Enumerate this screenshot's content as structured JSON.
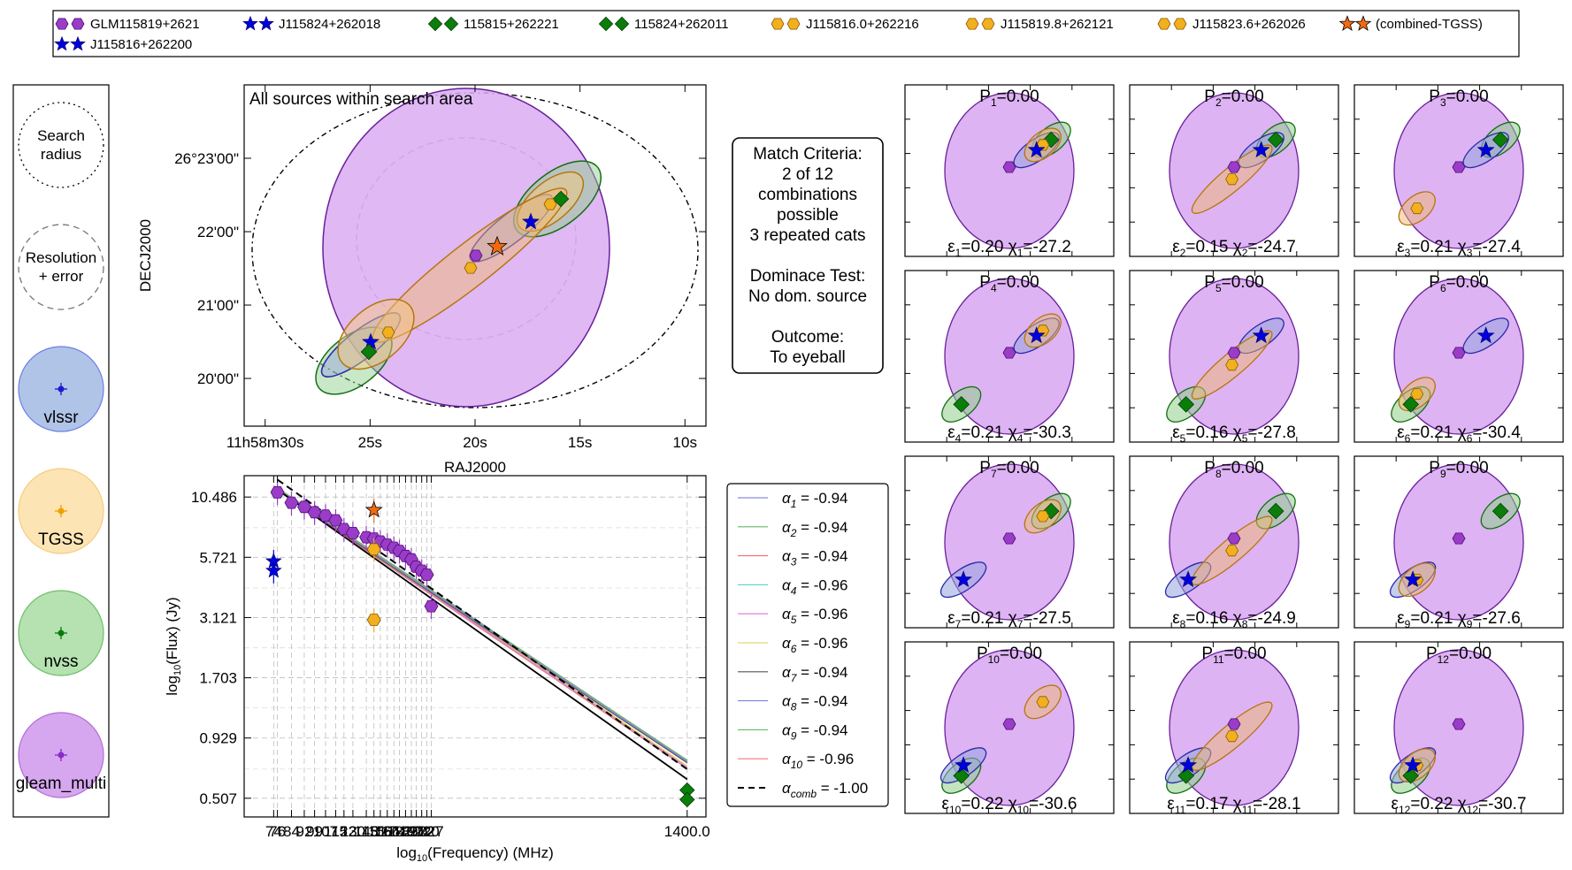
{
  "legend_top": [
    {
      "label": "GLM115819+2621",
      "marker": "hexagon-purple"
    },
    {
      "label": "J115824+262018",
      "marker": "star-blue"
    },
    {
      "label": "115815+262221",
      "marker": "diamond-green"
    },
    {
      "label": "115824+262011",
      "marker": "diamond-green"
    },
    {
      "label": "J115816.0+262216",
      "marker": "hexagon-orange"
    },
    {
      "label": "J115819.8+262121",
      "marker": "hexagon-orange"
    },
    {
      "label": "J115823.6+262026",
      "marker": "hexagon-orange"
    },
    {
      "label": "(combined-TGSS)",
      "marker": "star-orange"
    },
    {
      "label": "J115816+262200",
      "marker": "star-blue"
    }
  ],
  "key_panel": {
    "search": {
      "line1": "Search",
      "line2": "radius"
    },
    "resolution": {
      "line1": "Resolution",
      "line2": "+ error"
    },
    "catalogues": [
      {
        "name": "vlssr",
        "fill": "#b0c4e8",
        "edge": "#6c7ee6",
        "marker": "#1a1ad0"
      },
      {
        "name": "TGSS",
        "fill": "#fde4b4",
        "edge": "#f5cc80",
        "marker": "#f0a000"
      },
      {
        "name": "nvss",
        "fill": "#b5e2b0",
        "edge": "#6fbf69",
        "marker": "#0a7a0a"
      },
      {
        "name": "gleam_multi",
        "fill": "#d6a6ef",
        "edge": "#b06fd8",
        "marker": "#8a2ac8"
      }
    ]
  },
  "match_box": {
    "lines": [
      "Match Criteria:",
      "2 of 12",
      "combinations",
      "possible",
      "3 repeated cats",
      "",
      "Dominace Test:",
      "No dom. source",
      "",
      "Outcome:",
      "To eyeball"
    ]
  },
  "colors": {
    "gleam": "#9a3cc8",
    "vlssr": "#0000dd",
    "nvss": "#0a7d0a",
    "tgss": "#f2b01e",
    "combined": "#f26a10"
  },
  "chart_data": [
    {
      "type": "scatter",
      "title": "All sources within search area",
      "xlabel": "RAJ2000",
      "ylabel": "DECJ2000",
      "x_ticks": [
        {
          "label": "11h58m30s",
          "ra_sec": 30
        },
        {
          "label": "25s",
          "ra_sec": 25
        },
        {
          "label": "20s",
          "ra_sec": 20
        },
        {
          "label": "15s",
          "ra_sec": 15
        },
        {
          "label": "10s",
          "ra_sec": 10
        }
      ],
      "y_ticks": [
        {
          "label": "26°23'00\"",
          "dec_arcmin": 23
        },
        {
          "label": "22'00\"",
          "dec_arcmin": 22
        },
        {
          "label": "21'00\"",
          "dec_arcmin": 21
        },
        {
          "label": "20'00\"",
          "dec_arcmin": 20
        }
      ],
      "xlim": [
        31,
        9
      ],
      "ylim": [
        19.35,
        24.0
      ]
    },
    {
      "type": "scatter",
      "xlabel": "log10(Frequency) (MHz)",
      "ylabel": "log10(Flux) (Jy)",
      "y_tick_labels": [
        "10.486",
        "5.721",
        "3.121",
        "1.703",
        "0.929",
        "0.507"
      ],
      "x_tick_labels": [
        "74",
        "76",
        "84",
        "92",
        "99",
        "107",
        "115",
        "122",
        "130",
        "143",
        "151",
        "158",
        "166",
        "174",
        "181",
        "189",
        "197",
        "204",
        "212",
        "220",
        "227",
        "1400.0"
      ],
      "xlim": [
        60,
        1600
      ],
      "ylim": [
        0.42,
        13.0
      ],
      "series": [
        {
          "name": "gleam_multi",
          "points": [
            [
              76,
              11.0
            ],
            [
              84,
              9.9
            ],
            [
              92,
              9.5
            ],
            [
              99,
              9.0
            ],
            [
              107,
              8.7
            ],
            [
              115,
              8.3
            ],
            [
              122,
              7.6
            ],
            [
              130,
              7.3
            ],
            [
              143,
              7.0
            ],
            [
              151,
              6.9
            ],
            [
              158,
              6.7
            ],
            [
              166,
              6.5
            ],
            [
              174,
              6.3
            ],
            [
              181,
              6.1
            ],
            [
              189,
              5.8
            ],
            [
              197,
              5.6
            ],
            [
              204,
              5.2
            ],
            [
              212,
              5.0
            ],
            [
              220,
              4.8
            ],
            [
              227,
              3.5
            ]
          ]
        },
        {
          "name": "vlssr",
          "points": [
            [
              74,
              5.5
            ],
            [
              74,
              5.0
            ]
          ]
        },
        {
          "name": "tgss",
          "points": [
            [
              151,
              6.2
            ],
            [
              151,
              3.05
            ]
          ]
        },
        {
          "name": "combined-TGSS",
          "points": [
            [
              151,
              9.2
            ]
          ]
        },
        {
          "name": "nvss",
          "points": [
            [
              1400,
              0.55
            ],
            [
              1400,
              0.5
            ]
          ]
        }
      ],
      "fit_lines": [
        {
          "label": "α1 = -0.94",
          "sub": "1",
          "alpha": "-0.94",
          "color": "#6c6cd8"
        },
        {
          "label": "α2 = -0.94",
          "sub": "2",
          "alpha": "-0.94",
          "color": "#66b566"
        },
        {
          "label": "α3 = -0.94",
          "sub": "3",
          "alpha": "-0.94",
          "color": "#f07070"
        },
        {
          "label": "α4 = -0.96",
          "sub": "4",
          "alpha": "-0.96",
          "color": "#5ad2d2"
        },
        {
          "label": "α5 = -0.96",
          "sub": "5",
          "alpha": "-0.96",
          "color": "#e070e0"
        },
        {
          "label": "α6 = -0.96",
          "sub": "6",
          "alpha": "-0.96",
          "color": "#d8d050"
        },
        {
          "label": "α7 = -0.94",
          "sub": "7",
          "alpha": "-0.94",
          "color": "#555555"
        },
        {
          "label": "α8 = -0.94",
          "sub": "8",
          "alpha": "-0.94",
          "color": "#8080e0"
        },
        {
          "label": "α9 = -0.94",
          "sub": "9",
          "alpha": "-0.94",
          "color": "#66bb66"
        },
        {
          "label": "α10 = -0.96",
          "sub": "10",
          "alpha": "-0.96",
          "color": "#f07878"
        },
        {
          "label": "αcomb = -1.00",
          "sub": "comb",
          "alpha": "-1.00",
          "color": "#000000",
          "dashed": true
        }
      ]
    },
    {
      "type": "scatter",
      "panels": [
        {
          "p": "P1=0.00",
          "eps": "0.20",
          "chi": "-27.2",
          "idx": "1"
        },
        {
          "p": "P2=0.00",
          "eps": "0.15",
          "chi": "-24.7",
          "idx": "2"
        },
        {
          "p": "P3=0.00",
          "eps": "0.21",
          "chi": "-27.4",
          "idx": "3"
        },
        {
          "p": "P4=0.00",
          "eps": "0.21",
          "chi": "-30.3",
          "idx": "4"
        },
        {
          "p": "P5=0.00",
          "eps": "0.16",
          "chi": "-27.8",
          "idx": "5"
        },
        {
          "p": "P6=0.00",
          "eps": "0.21",
          "chi": "-30.4",
          "idx": "6"
        },
        {
          "p": "P7=0.00",
          "eps": "0.21",
          "chi": "-27.5",
          "idx": "7"
        },
        {
          "p": "P8=0.00",
          "eps": "0.16",
          "chi": "-24.9",
          "idx": "8"
        },
        {
          "p": "P9=0.00",
          "eps": "0.21",
          "chi": "-27.6",
          "idx": "9"
        },
        {
          "p": "P10=0.00",
          "eps": "0.22",
          "chi": "-30.6",
          "idx": "10"
        },
        {
          "p": "P11=0.00",
          "eps": "0.17",
          "chi": "-28.1",
          "idx": "11"
        },
        {
          "p": "P12=0.00",
          "eps": "0.22",
          "chi": "-30.7",
          "idx": "12"
        }
      ],
      "combos": [
        {
          "v": "J115816+262200",
          "n": "115815+262221",
          "t": "J115816.0+262216"
        },
        {
          "v": "J115816+262200",
          "n": "115815+262221",
          "t": "J115819.8+262121"
        },
        {
          "v": "J115816+262200",
          "n": "115815+262221",
          "t": "J115823.6+262026"
        },
        {
          "v": "J115816+262200",
          "n": "115824+262011",
          "t": "J115816.0+262216"
        },
        {
          "v": "J115816+262200",
          "n": "115824+262011",
          "t": "J115819.8+262121"
        },
        {
          "v": "J115816+262200",
          "n": "115824+262011",
          "t": "J115823.6+262026"
        },
        {
          "v": "J115824+262018",
          "n": "115815+262221",
          "t": "J115816.0+262216"
        },
        {
          "v": "J115824+262018",
          "n": "115815+262221",
          "t": "J115819.8+262121"
        },
        {
          "v": "J115824+262018",
          "n": "115815+262221",
          "t": "J115823.6+262026"
        },
        {
          "v": "J115824+262018",
          "n": "115824+262011",
          "t": "J115816.0+262216"
        },
        {
          "v": "J115824+262018",
          "n": "115824+262011",
          "t": "J115819.8+262121"
        },
        {
          "v": "J115824+262018",
          "n": "115824+262011",
          "t": "J115823.6+262026"
        }
      ]
    }
  ]
}
